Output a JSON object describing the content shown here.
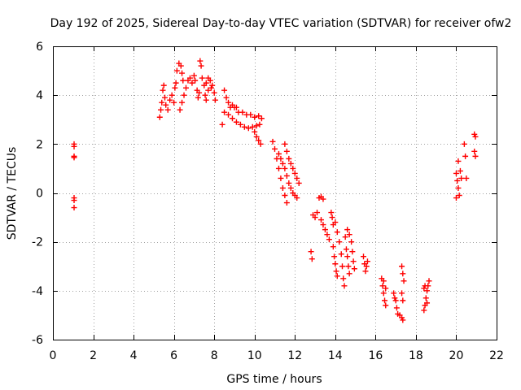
{
  "chart_data": {
    "type": "scatter",
    "title": "Day 192 of 2025, Sidereal Day-to-day VTEC variation (SDTVAR) for receiver ofw2",
    "xlabel": "GPS time / hours",
    "ylabel": "SDTVAR / TECUs",
    "xlim": [
      0,
      22
    ],
    "ylim": [
      -6,
      6
    ],
    "xticks": [
      0,
      2,
      4,
      6,
      8,
      10,
      12,
      14,
      16,
      18,
      20,
      22
    ],
    "yticks": [
      -6,
      -4,
      -2,
      0,
      2,
      4,
      6
    ],
    "grid": true,
    "marker": "+",
    "color": "#ff0000",
    "series": [
      {
        "name": "SDTVAR",
        "points": [
          [
            1.05,
            2.0
          ],
          [
            1.05,
            1.9
          ],
          [
            1.05,
            1.5
          ],
          [
            1.05,
            1.45
          ],
          [
            1.05,
            -0.2
          ],
          [
            1.05,
            -0.3
          ],
          [
            1.05,
            -0.6
          ],
          [
            5.3,
            3.1
          ],
          [
            5.35,
            3.4
          ],
          [
            5.4,
            3.7
          ],
          [
            5.45,
            4.2
          ],
          [
            5.5,
            4.4
          ],
          [
            5.55,
            3.9
          ],
          [
            5.6,
            3.6
          ],
          [
            5.7,
            3.4
          ],
          [
            5.8,
            3.8
          ],
          [
            5.9,
            4.0
          ],
          [
            6.0,
            3.7
          ],
          [
            6.05,
            4.3
          ],
          [
            6.1,
            4.5
          ],
          [
            6.15,
            5.0
          ],
          [
            6.25,
            5.3
          ],
          [
            6.35,
            5.2
          ],
          [
            6.4,
            4.9
          ],
          [
            6.45,
            4.6
          ],
          [
            6.3,
            3.4
          ],
          [
            6.4,
            3.7
          ],
          [
            6.5,
            4.0
          ],
          [
            6.6,
            4.3
          ],
          [
            6.7,
            4.6
          ],
          [
            6.8,
            4.7
          ],
          [
            6.9,
            4.5
          ],
          [
            7.0,
            4.8
          ],
          [
            7.05,
            4.6
          ],
          [
            7.15,
            4.2
          ],
          [
            7.2,
            3.9
          ],
          [
            7.25,
            4.1
          ],
          [
            7.3,
            5.4
          ],
          [
            7.35,
            5.2
          ],
          [
            7.4,
            4.7
          ],
          [
            7.5,
            4.4
          ],
          [
            7.55,
            4.0
          ],
          [
            7.6,
            3.8
          ],
          [
            7.7,
            4.2
          ],
          [
            7.8,
            4.6
          ],
          [
            7.9,
            4.4
          ],
          [
            8.0,
            4.1
          ],
          [
            8.05,
            3.8
          ],
          [
            7.6,
            4.5
          ],
          [
            7.7,
            4.7
          ],
          [
            7.85,
            4.3
          ],
          [
            8.4,
            2.8
          ],
          [
            8.5,
            4.2
          ],
          [
            8.6,
            3.9
          ],
          [
            8.7,
            3.7
          ],
          [
            8.8,
            3.5
          ],
          [
            8.9,
            3.6
          ],
          [
            9.0,
            3.5
          ],
          [
            9.1,
            3.5
          ],
          [
            9.2,
            3.3
          ],
          [
            9.4,
            3.3
          ],
          [
            9.6,
            3.2
          ],
          [
            9.8,
            3.2
          ],
          [
            10.0,
            3.1
          ],
          [
            10.2,
            3.15
          ],
          [
            10.35,
            3.05
          ],
          [
            8.5,
            3.3
          ],
          [
            8.7,
            3.2
          ],
          [
            8.9,
            3.05
          ],
          [
            9.1,
            2.9
          ],
          [
            9.3,
            2.8
          ],
          [
            9.5,
            2.7
          ],
          [
            9.7,
            2.65
          ],
          [
            9.9,
            2.7
          ],
          [
            10.1,
            2.75
          ],
          [
            10.25,
            2.8
          ],
          [
            10.0,
            2.5
          ],
          [
            10.1,
            2.3
          ],
          [
            10.2,
            2.15
          ],
          [
            10.3,
            2.0
          ],
          [
            10.9,
            2.1
          ],
          [
            11.0,
            1.8
          ],
          [
            11.1,
            1.4
          ],
          [
            11.2,
            1.0
          ],
          [
            11.3,
            0.6
          ],
          [
            11.4,
            0.2
          ],
          [
            11.5,
            -0.1
          ],
          [
            11.6,
            -0.4
          ],
          [
            11.2,
            1.6
          ],
          [
            11.3,
            1.4
          ],
          [
            11.4,
            1.2
          ],
          [
            11.5,
            1.0
          ],
          [
            11.6,
            0.7
          ],
          [
            11.7,
            0.4
          ],
          [
            11.8,
            0.2
          ],
          [
            11.9,
            0.0
          ],
          [
            12.0,
            -0.1
          ],
          [
            12.1,
            -0.2
          ],
          [
            11.5,
            2.0
          ],
          [
            11.6,
            1.7
          ],
          [
            11.7,
            1.4
          ],
          [
            11.8,
            1.2
          ],
          [
            11.9,
            1.0
          ],
          [
            12.0,
            0.8
          ],
          [
            12.1,
            0.6
          ],
          [
            12.2,
            0.4
          ],
          [
            12.8,
            -2.4
          ],
          [
            12.85,
            -2.7
          ],
          [
            12.9,
            -0.9
          ],
          [
            13.0,
            -1.0
          ],
          [
            13.1,
            -0.8
          ],
          [
            13.2,
            -0.2
          ],
          [
            13.3,
            -0.15
          ],
          [
            13.4,
            -0.25
          ],
          [
            13.3,
            -1.1
          ],
          [
            13.4,
            -1.3
          ],
          [
            13.5,
            -1.5
          ],
          [
            13.6,
            -1.7
          ],
          [
            13.7,
            -1.9
          ],
          [
            13.8,
            -0.8
          ],
          [
            13.85,
            -1.0
          ],
          [
            13.9,
            -1.3
          ],
          [
            13.9,
            -2.2
          ],
          [
            13.95,
            -2.6
          ],
          [
            14.0,
            -2.9
          ],
          [
            14.05,
            -3.2
          ],
          [
            14.1,
            -3.4
          ],
          [
            14.0,
            -1.2
          ],
          [
            14.1,
            -1.6
          ],
          [
            14.2,
            -2.0
          ],
          [
            14.3,
            -2.5
          ],
          [
            14.35,
            -3.0
          ],
          [
            14.4,
            -3.5
          ],
          [
            14.45,
            -3.8
          ],
          [
            14.5,
            -1.8
          ],
          [
            14.55,
            -2.3
          ],
          [
            14.6,
            -2.6
          ],
          [
            14.65,
            -3.0
          ],
          [
            14.7,
            -3.3
          ],
          [
            14.6,
            -1.5
          ],
          [
            14.7,
            -1.7
          ],
          [
            14.8,
            -2.0
          ],
          [
            14.85,
            -2.4
          ],
          [
            14.9,
            -2.8
          ],
          [
            14.95,
            -3.1
          ],
          [
            15.4,
            -2.6
          ],
          [
            15.45,
            -2.9
          ],
          [
            15.5,
            -3.2
          ],
          [
            15.55,
            -3.0
          ],
          [
            15.6,
            -2.8
          ],
          [
            16.3,
            -3.5
          ],
          [
            16.35,
            -3.8
          ],
          [
            16.4,
            -4.1
          ],
          [
            16.45,
            -4.4
          ],
          [
            16.5,
            -4.6
          ],
          [
            16.4,
            -3.6
          ],
          [
            16.5,
            -3.9
          ],
          [
            16.9,
            -4.1
          ],
          [
            16.95,
            -4.3
          ],
          [
            17.0,
            -4.4
          ],
          [
            17.05,
            -4.7
          ],
          [
            17.1,
            -4.95
          ],
          [
            17.2,
            -5.0
          ],
          [
            17.3,
            -5.1
          ],
          [
            17.35,
            -5.2
          ],
          [
            17.3,
            -3.0
          ],
          [
            17.35,
            -3.3
          ],
          [
            17.4,
            -3.6
          ],
          [
            17.3,
            -4.1
          ],
          [
            17.35,
            -4.4
          ],
          [
            18.4,
            -4.8
          ],
          [
            18.45,
            -4.6
          ],
          [
            18.5,
            -4.3
          ],
          [
            18.55,
            -4.0
          ],
          [
            18.6,
            -3.8
          ],
          [
            18.65,
            -3.6
          ],
          [
            18.4,
            -3.9
          ],
          [
            18.45,
            -3.8
          ],
          [
            18.55,
            -4.5
          ],
          [
            20.0,
            0.8
          ],
          [
            20.05,
            0.5
          ],
          [
            20.1,
            0.2
          ],
          [
            20.15,
            -0.1
          ],
          [
            20.0,
            -0.2
          ],
          [
            20.1,
            1.3
          ],
          [
            20.2,
            0.9
          ],
          [
            20.25,
            0.6
          ],
          [
            20.4,
            2.0
          ],
          [
            20.45,
            1.5
          ],
          [
            20.5,
            0.6
          ],
          [
            20.9,
            2.4
          ],
          [
            20.95,
            2.3
          ],
          [
            20.9,
            1.7
          ],
          [
            20.95,
            1.5
          ]
        ]
      }
    ]
  }
}
